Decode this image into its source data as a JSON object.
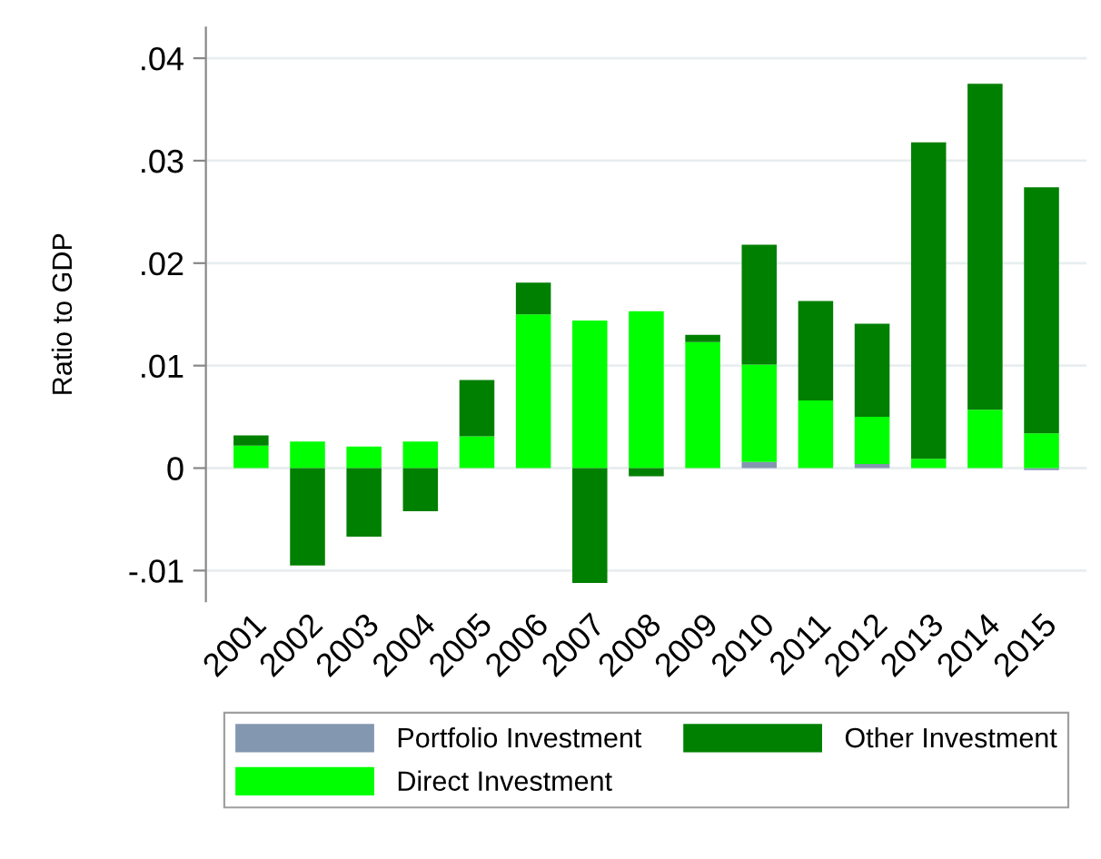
{
  "chart_data": {
    "type": "bar",
    "stacked": true,
    "ylabel": "Ratio to GDP",
    "categories": [
      "2001",
      "2002",
      "2003",
      "2004",
      "2005",
      "2006",
      "2007",
      "2008",
      "2009",
      "2010",
      "2011",
      "2012",
      "2013",
      "2014",
      "2015"
    ],
    "series": [
      {
        "name": "Portfolio Investment",
        "color": "#8497b0",
        "values": [
          0,
          0,
          0,
          0,
          0,
          0,
          0,
          0,
          0,
          0.0006,
          0,
          0.0004,
          0,
          0,
          -0.0002
        ]
      },
      {
        "name": "Direct Investment",
        "color": "#00ff00",
        "values": [
          0.0022,
          0.0026,
          0.0021,
          0.0026,
          0.0031,
          0.015,
          0.0144,
          0.0153,
          0.0123,
          0.0095,
          0.0066,
          0.0046,
          0.0009,
          0.0057,
          0.0034
        ]
      },
      {
        "name": "Other Investment",
        "color": "#008000",
        "values": [
          0.001,
          -0.0095,
          -0.0067,
          -0.0042,
          0.0055,
          0.0031,
          -0.0112,
          -0.0008,
          0.0007,
          0.0117,
          0.0097,
          0.0091,
          0.0309,
          0.0318,
          0.024
        ]
      }
    ],
    "ylim": [
      -0.013,
      0.043
    ],
    "yticks": [
      {
        "value": -0.01,
        "label": "-.01"
      },
      0,
      {
        "value": 0.01,
        "label": ".01"
      },
      {
        "value": 0.02,
        "label": ".02"
      },
      {
        "value": 0.03,
        "label": ".03"
      },
      {
        "value": 0.04,
        "label": ".04"
      }
    ],
    "grid": "y",
    "legend": "bottom"
  }
}
